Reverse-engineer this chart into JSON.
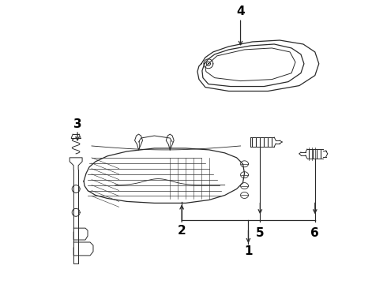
{
  "background_color": "#ffffff",
  "line_color": "#2a2a2a",
  "label_color": "#000000",
  "figsize": [
    4.9,
    3.6
  ],
  "dpi": 100,
  "label_fontsize": 10,
  "label_fontsize_big": 11
}
